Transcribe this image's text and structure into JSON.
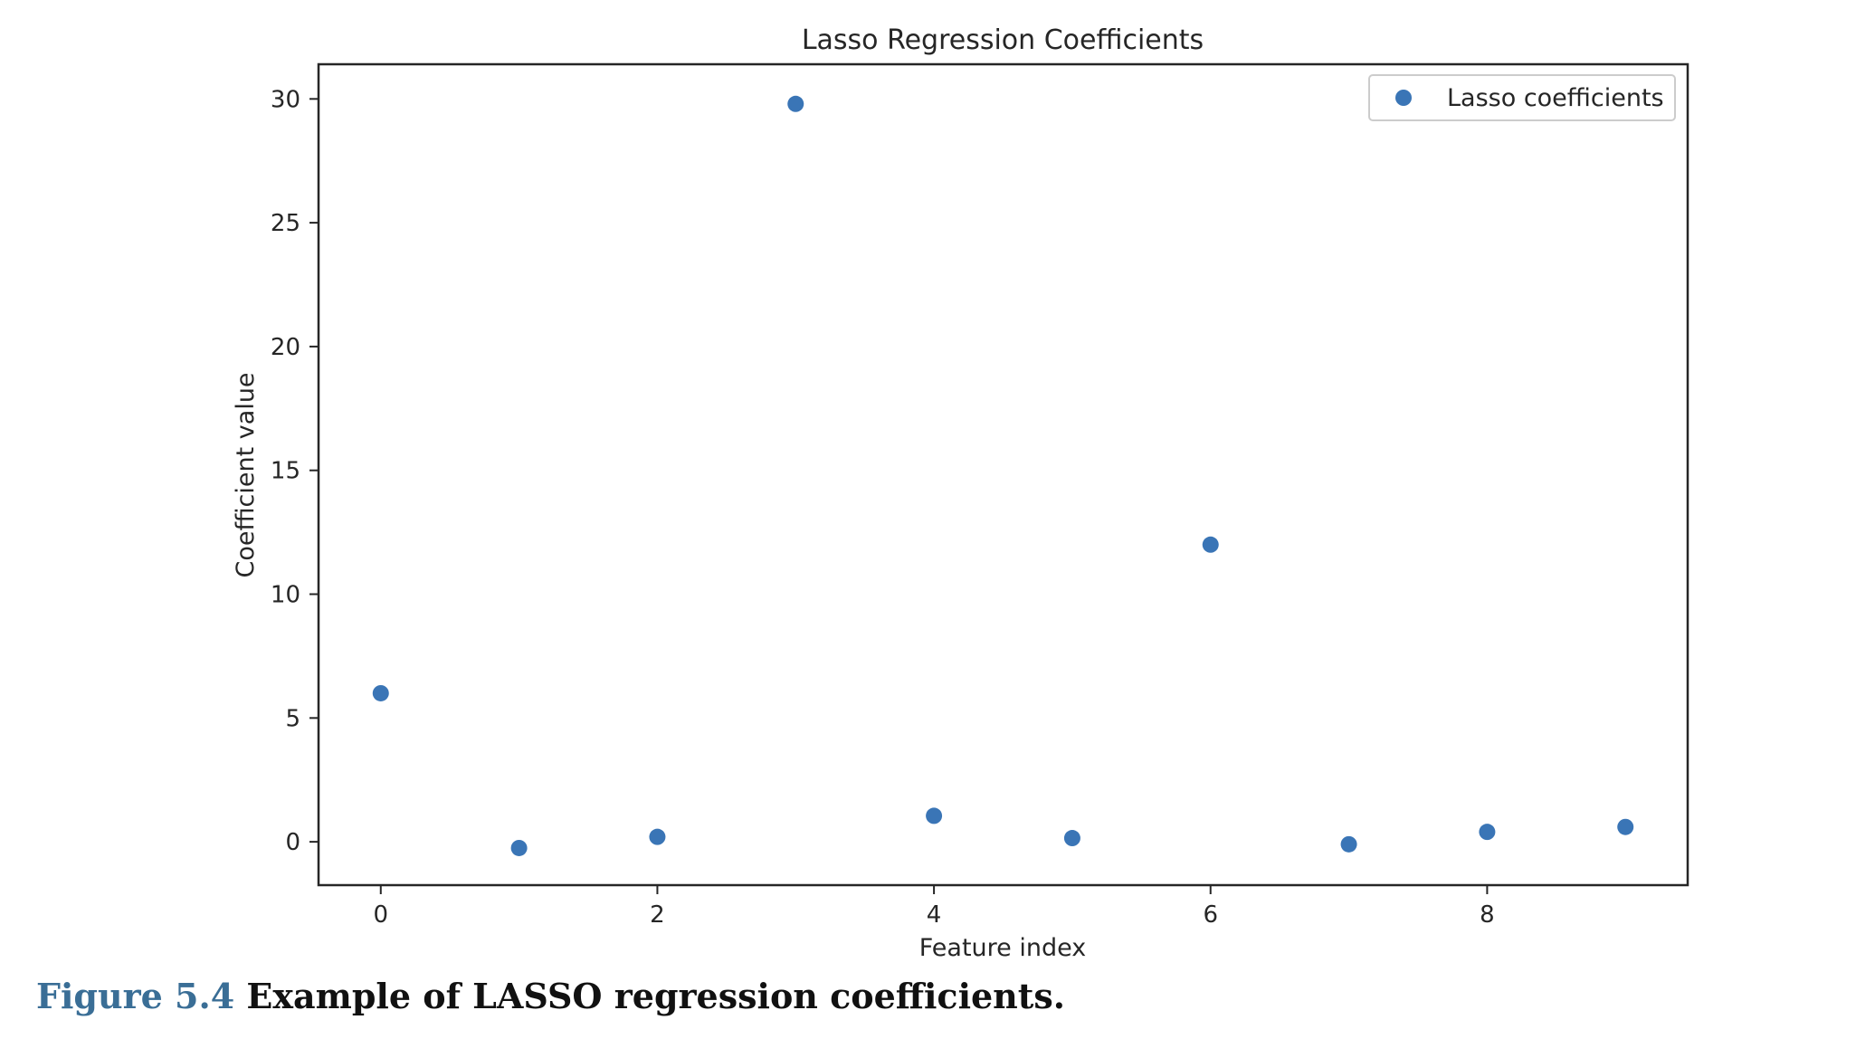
{
  "chart_data": {
    "type": "scatter",
    "title": "Lasso Regression Coefficients",
    "xlabel": "Feature index",
    "ylabel": "Coefficient value",
    "x": [
      0,
      1,
      2,
      3,
      4,
      5,
      6,
      7,
      8,
      9
    ],
    "series": [
      {
        "name": "Lasso coefficients",
        "values": [
          6.0,
          -0.25,
          0.2,
          29.8,
          1.05,
          0.15,
          12.0,
          -0.1,
          0.4,
          0.6
        ],
        "color": "#3a75b6"
      }
    ],
    "xlim": [
      -0.45,
      9.45
    ],
    "ylim": [
      -1.75,
      31.4
    ],
    "xticks": [
      0,
      2,
      4,
      6,
      8
    ],
    "yticks": [
      0,
      5,
      10,
      15,
      20,
      25,
      30
    ],
    "grid": false,
    "legend": "top-right"
  },
  "caption": {
    "label": "Figure 5.4",
    "text": "Example of LASSO regression coefficients."
  }
}
